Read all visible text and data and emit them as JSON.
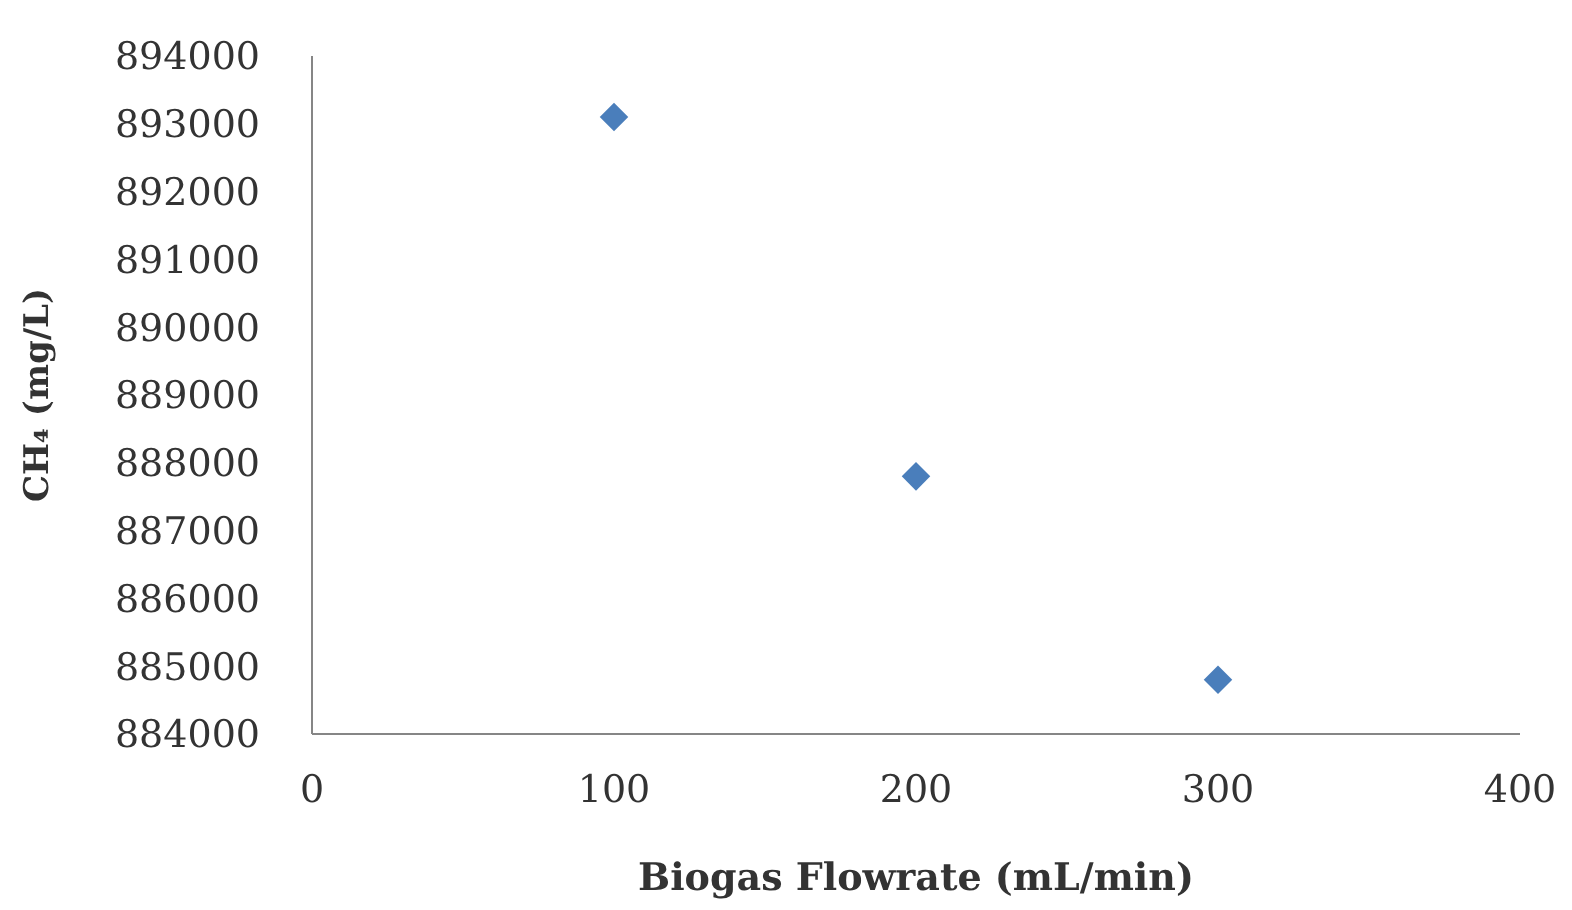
{
  "chart_data": {
    "type": "scatter",
    "xlabel": "Biogas Flowrate (mL/min)",
    "ylabel": "CH₄ (mg/L)",
    "x": [
      100,
      200,
      300
    ],
    "series": [
      {
        "color": "#4a7ebb",
        "values": [
          893100,
          887800,
          884800
        ]
      }
    ],
    "xlim": [
      0,
      400
    ],
    "xticks": [
      0,
      100,
      200,
      300,
      400
    ],
    "ylim": [
      884000,
      894000
    ],
    "yticks": [
      884000,
      885000,
      886000,
      887000,
      888000,
      889000,
      890000,
      891000,
      892000,
      893000,
      894000
    ],
    "marker": "diamond"
  }
}
